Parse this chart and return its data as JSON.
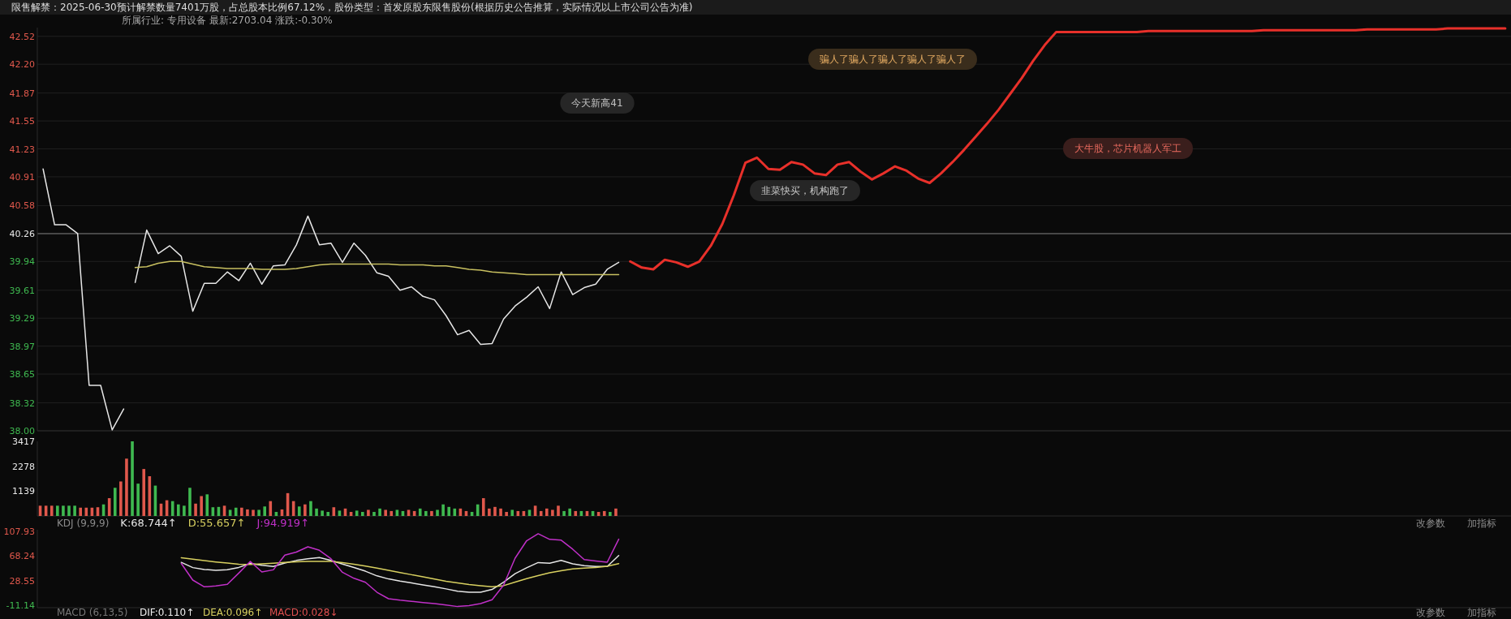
{
  "chart_data": [
    {
      "type": "line",
      "title": "限售解禁：2025-06-30预计解禁数量7401万股，占总股本比例67.12%，股份类型：首发原股东限售股份(根据历史公告推算，实际情况以上市公司公告为准)",
      "subtitle": "所属行业: 专用设备   最新:2703.04   涨跌:-0.30%",
      "categories": [
        null,
        null,
        null,
        null,
        null,
        null,
        null,
        null,
        null,
        null,
        null,
        null,
        null,
        null,
        null,
        null,
        null,
        null,
        null,
        null,
        null,
        null,
        null,
        null,
        null,
        null,
        null,
        null,
        null,
        null,
        null,
        null,
        null,
        null,
        null,
        null,
        null,
        null,
        null,
        null,
        null,
        null,
        null,
        null,
        null,
        null,
        null,
        null,
        null,
        null,
        null,
        null,
        null,
        null,
        null,
        null,
        null,
        null,
        null,
        null,
        null,
        null,
        null,
        null,
        null,
        null,
        null,
        null,
        null,
        null,
        null,
        null,
        null,
        null,
        null,
        null,
        null,
        null,
        null,
        null,
        null,
        null,
        null,
        null,
        null,
        null,
        null,
        null,
        null,
        null,
        null,
        null,
        null,
        null,
        null,
        null,
        null,
        null,
        null,
        null,
        null,
        null,
        null,
        null,
        null,
        null,
        null,
        null,
        null,
        null,
        null,
        null,
        null,
        null,
        null,
        null,
        null,
        null,
        null,
        null,
        null,
        null,
        null,
        null,
        null,
        null,
        null,
        null
      ],
      "ylim": [
        38,
        42.62
      ],
      "yticks": [
        {
          "value": 38,
          "label": "38.00"
        },
        38.32,
        38.65,
        38.97,
        39.29,
        39.61,
        39.94,
        40.26,
        40.58,
        40.91,
        41.23,
        41.55,
        41.87,
        {
          "value": 42.2,
          "label": "42.20"
        },
        42.52
      ],
      "tick_labels": "y",
      "grid": "y",
      "ref_lines": [
        {
          "axis": "y",
          "value": 40.26,
          "color": "#5a5a5a"
        }
      ],
      "annotations": [
        "今天新高41",
        "骗人了骗人了骗人了骗人了骗人了",
        "韭菜快买，机构跑了",
        "大牛股，芯片机器人军工"
      ],
      "series": [
        {
          "color": "#e6e6e6",
          "values": [
            41.0,
            40.36,
            40.36,
            40.26,
            38.52,
            38.52,
            38.01,
            38.25,
            null,
            null,
            null,
            null,
            null,
            null,
            null,
            null,
            null,
            null,
            null,
            null,
            null,
            null,
            null,
            null,
            null,
            null,
            null,
            null,
            null,
            null,
            null,
            null,
            null,
            null,
            null,
            null,
            null,
            null,
            null,
            null,
            null,
            null,
            null,
            null,
            null,
            null,
            null,
            null,
            null,
            null,
            null,
            null,
            null,
            null,
            null,
            null,
            null,
            null,
            null,
            null,
            null,
            null,
            null,
            null,
            null,
            null,
            null,
            null,
            null,
            null,
            null,
            null,
            null,
            null,
            null,
            null,
            null,
            null,
            null,
            null,
            null,
            null,
            null,
            null,
            null,
            null,
            null,
            null,
            null,
            null,
            null,
            null,
            null,
            null,
            null,
            null,
            null,
            null,
            null,
            null,
            null,
            null,
            null,
            null,
            null,
            null,
            null,
            null,
            null,
            null,
            null,
            null,
            null,
            null,
            null,
            null,
            null,
            null,
            null,
            null,
            null,
            null,
            null,
            null,
            null,
            null,
            null,
            null
          ]
        },
        {
          "color": "#e6e6e6",
          "values": [
            null,
            null,
            null,
            null,
            null,
            null,
            null,
            null,
            39.7,
            40.3,
            40.03,
            40.12,
            40.0,
            39.37,
            39.69,
            39.69,
            39.82,
            39.72,
            39.92,
            39.68,
            39.89,
            39.9,
            40.13,
            40.46,
            40.13,
            40.15,
            39.93,
            40.15,
            40.01,
            39.81,
            39.77,
            39.61,
            39.65,
            39.54,
            39.5,
            39.32,
            39.1,
            39.15,
            38.99,
            39.0,
            39.28,
            39.43,
            39.53,
            39.65,
            39.4,
            39.82,
            39.56,
            39.64,
            39.68,
            39.85,
            39.93,
            null,
            null,
            null,
            null,
            null,
            null,
            null,
            null,
            null,
            null,
            null,
            null,
            null,
            null,
            null,
            null,
            null,
            null,
            null,
            null,
            null,
            null,
            null,
            null,
            null,
            null,
            null,
            null,
            null,
            null,
            null,
            null,
            null,
            null,
            null,
            null,
            null,
            null,
            null,
            null,
            null,
            null,
            null,
            null,
            null,
            null,
            null,
            null,
            null,
            null,
            null,
            null,
            null,
            null,
            null,
            null,
            null,
            null,
            null,
            null,
            null,
            null,
            null,
            null,
            null,
            null,
            null,
            null,
            null,
            null,
            null,
            null,
            null,
            null,
            null,
            null,
            null
          ]
        },
        {
          "color": "#c8c060",
          "values": [
            null,
            null,
            null,
            null,
            null,
            null,
            null,
            null,
            39.87,
            39.88,
            39.92,
            39.94,
            39.94,
            39.91,
            39.88,
            39.87,
            39.86,
            39.86,
            39.86,
            39.85,
            39.85,
            39.85,
            39.86,
            39.88,
            39.9,
            39.91,
            39.91,
            39.91,
            39.91,
            39.91,
            39.91,
            39.9,
            39.9,
            39.9,
            39.89,
            39.89,
            39.87,
            39.85,
            39.84,
            39.82,
            39.81,
            39.8,
            39.79,
            39.79,
            39.79,
            39.79,
            39.79,
            39.79,
            39.79,
            39.79,
            39.79,
            null,
            null,
            null,
            null,
            null,
            null,
            null,
            null,
            null,
            null,
            null,
            null,
            null,
            null,
            null,
            null,
            null,
            null,
            null,
            null,
            null,
            null,
            null,
            null,
            null,
            null,
            null,
            null,
            null,
            null,
            null,
            null,
            null,
            null,
            null,
            null,
            null,
            null,
            null,
            null,
            null,
            null,
            null,
            null,
            null,
            null,
            null,
            null,
            null,
            null,
            null,
            null,
            null,
            null,
            null,
            null,
            null,
            null,
            null,
            null,
            null,
            null,
            null,
            null,
            null,
            null,
            null,
            null,
            null,
            null,
            null,
            null,
            null,
            null,
            null,
            null,
            null
          ]
        },
        {
          "color": "#e8302a",
          "values": [
            null,
            null,
            null,
            null,
            null,
            null,
            null,
            null,
            null,
            null,
            null,
            null,
            null,
            null,
            null,
            null,
            null,
            null,
            null,
            null,
            null,
            null,
            null,
            null,
            null,
            null,
            null,
            null,
            null,
            null,
            null,
            null,
            null,
            null,
            null,
            null,
            null,
            null,
            null,
            null,
            null,
            null,
            null,
            null,
            null,
            null,
            null,
            null,
            null,
            null,
            null,
            39.94,
            39.87,
            39.85,
            39.96,
            39.93,
            39.88,
            39.94,
            40.12,
            40.37,
            40.7,
            41.07,
            41.13,
            41.0,
            40.99,
            41.08,
            41.05,
            40.95,
            40.93,
            41.05,
            41.08,
            40.97,
            40.88,
            40.95,
            41.03,
            40.98,
            40.89,
            40.84,
            40.95,
            41.08,
            41.22,
            41.37,
            41.52,
            41.68,
            41.86,
            42.04,
            42.24,
            42.42,
            42.57,
            42.57,
            42.57,
            42.57,
            42.57,
            42.57,
            42.57,
            42.57,
            42.58,
            42.58,
            42.58,
            42.58,
            42.58,
            42.58,
            42.58,
            42.58,
            42.58,
            42.58,
            42.59,
            42.59,
            42.59,
            42.59,
            42.59,
            42.59,
            42.59,
            42.59,
            42.59,
            42.6,
            42.6,
            42.6,
            42.6,
            42.6,
            42.6,
            42.6,
            42.61,
            42.61,
            42.61,
            42.61,
            42.61,
            42.61
          ]
        }
      ]
    },
    {
      "type": "bar",
      "categories": [
        null,
        null,
        null,
        null,
        null,
        null,
        null,
        null,
        null,
        null,
        null,
        null,
        null,
        null,
        null,
        null,
        null,
        null,
        null,
        null,
        null,
        null,
        null,
        null,
        null,
        null,
        null,
        null,
        null,
        null,
        null,
        null,
        null,
        null,
        null,
        null,
        null,
        null,
        null,
        null,
        null,
        null,
        null,
        null,
        null,
        null,
        null,
        null,
        null,
        null,
        null,
        null,
        null,
        null,
        null,
        null,
        null,
        null,
        null,
        null,
        null,
        null,
        null,
        null,
        null,
        null,
        null,
        null,
        null,
        null,
        null,
        null,
        null,
        null,
        null,
        null,
        null,
        null,
        null,
        null,
        null,
        null,
        null,
        null,
        null,
        null,
        null,
        null,
        null,
        null,
        null,
        null,
        null,
        null,
        null,
        null,
        null,
        null,
        null,
        null,
        null,
        null,
        null,
        null,
        null,
        null,
        null,
        null,
        null,
        null,
        null,
        null,
        null,
        null,
        null,
        null,
        null,
        null,
        null,
        null,
        null,
        null,
        null,
        null,
        null,
        null,
        null,
        null,
        null,
        null,
        null,
        null,
        null,
        null,
        null,
        null,
        null,
        null,
        null,
        null,
        null,
        null,
        null,
        null,
        null,
        null,
        null,
        null,
        null,
        null,
        null,
        null,
        null,
        null,
        null,
        null,
        null,
        null,
        null,
        null,
        null,
        null,
        null,
        null,
        null,
        null,
        null,
        null,
        null,
        null,
        null,
        null,
        null,
        null,
        null,
        null,
        null,
        null,
        null,
        null,
        null,
        null,
        null,
        null,
        null,
        null,
        null,
        null,
        null,
        null,
        null,
        null,
        null,
        null,
        null,
        null,
        null,
        null,
        null,
        null,
        null,
        null,
        null,
        null,
        null,
        null,
        null,
        null,
        null,
        null,
        null,
        null,
        null,
        null,
        null,
        null,
        null,
        null,
        null,
        null,
        null,
        null,
        null,
        null,
        null,
        null,
        null,
        null,
        null,
        null,
        null,
        null,
        null,
        null,
        null,
        null,
        null,
        null,
        null,
        null,
        null,
        null,
        null,
        null,
        null,
        null,
        null,
        null,
        null,
        null,
        null,
        null,
        null,
        null,
        null,
        null
      ],
      "ylim": [
        0,
        3417
      ],
      "yticks": [
        1139,
        2278,
        3417
      ],
      "tick_labels": "y",
      "values": [
        470,
        470,
        470,
        470,
        470,
        470,
        470,
        380,
        380,
        380,
        400,
        530,
        815,
        1290,
        1580,
        2625,
        3417,
        1480,
        2150,
        1820,
        1390,
        565,
        720,
        680,
        530,
        470,
        1290,
        565,
        910,
        990,
        400,
        415,
        470,
        280,
        380,
        380,
        300,
        280,
        280,
        435,
        680,
        185,
        300,
        1045,
        680,
        435,
        530,
        680,
        340,
        245,
        185,
        400,
        245,
        340,
        185,
        245,
        185,
        280,
        185,
        340,
        280,
        225,
        280,
        225,
        280,
        225,
        340,
        225,
        225,
        280,
        530,
        415,
        340,
        340,
        225,
        185,
        530,
        815,
        340,
        415,
        340,
        185,
        280,
        225,
        225,
        280,
        470,
        225,
        340,
        280,
        470,
        225,
        340,
        225,
        225,
        225,
        225,
        185,
        225,
        185,
        340,
        null,
        null,
        null,
        null,
        null,
        null,
        null,
        null,
        null,
        null,
        null,
        null,
        null,
        null,
        null,
        null,
        null,
        null,
        null,
        null,
        null,
        null,
        null,
        null,
        null,
        null,
        null,
        null,
        null,
        null,
        null,
        null,
        null,
        null,
        null,
        null,
        null,
        null,
        null,
        null,
        null,
        null,
        null,
        null,
        null,
        null,
        null,
        null,
        null,
        null,
        null,
        null,
        null,
        null,
        null,
        null,
        null,
        null,
        null,
        null,
        null,
        null,
        null,
        null,
        null,
        null,
        null,
        null,
        null,
        null,
        null,
        null,
        null,
        null,
        null,
        null,
        null,
        null,
        null,
        null,
        null,
        null,
        null,
        null,
        null,
        null,
        null,
        null,
        null,
        null,
        null,
        null,
        null,
        null,
        null,
        null,
        null,
        null,
        null,
        null,
        null,
        null,
        null,
        null,
        null,
        null,
        null,
        null,
        null,
        null,
        null,
        null,
        null,
        null,
        null,
        null,
        null,
        null,
        null,
        null,
        null,
        null,
        null,
        null,
        null,
        null,
        null,
        null,
        null,
        null,
        null,
        null,
        null,
        null,
        null,
        null,
        null,
        null,
        null,
        null,
        null,
        null,
        null,
        null,
        null,
        null,
        null,
        null,
        null,
        null,
        null,
        null,
        null,
        null,
        null
      ],
      "colors": [
        "#e0584c",
        "#e0584c",
        "#e0584c",
        "#3fb950",
        "#3fb950",
        "#3fb950",
        "#3fb950",
        "#e0584c",
        "#e0584c",
        "#e0584c",
        "#e0584c",
        "#3fb950",
        "#e0584c",
        "#3fb950",
        "#e0584c",
        "#e0584c",
        "#3fb950",
        "#3fb950",
        "#e0584c",
        "#e0584c",
        "#3fb950",
        "#e0584c",
        "#e0584c",
        "#3fb950",
        "#3fb950",
        "#3fb950",
        "#3fb950",
        "#e0584c",
        "#e0584c",
        "#3fb950",
        "#3fb950",
        "#3fb950",
        "#e0584c",
        "#3fb950",
        "#3fb950",
        "#e0584c",
        "#e0584c",
        "#e0584c",
        "#3fb950",
        "#3fb950",
        "#e0584c",
        "#3fb950",
        "#e0584c",
        "#e0584c",
        "#e0584c",
        "#3fb950",
        "#e0584c",
        "#3fb950",
        "#3fb950",
        "#3fb950",
        "#3fb950",
        "#e0584c",
        "#3fb950",
        "#e0584c",
        "#e0584c",
        "#3fb950",
        "#3fb950",
        "#e0584c",
        "#3fb950",
        "#3fb950",
        "#e0584c",
        "#e0584c",
        "#3fb950",
        "#3fb950",
        "#e0584c",
        "#e0584c",
        "#3fb950",
        "#3fb950",
        "#e0584c",
        "#3fb950",
        "#3fb950",
        "#3fb950",
        "#3fb950",
        "#e0584c",
        "#e0584c",
        "#3fb950",
        "#3fb950",
        "#e0584c",
        "#e0584c",
        "#e0584c",
        "#e0584c",
        "#e0584c",
        "#3fb950",
        "#e0584c",
        "#e0584c",
        "#3fb950",
        "#e0584c",
        "#e0584c",
        "#e0584c",
        "#e0584c",
        "#e0584c",
        "#3fb950",
        "#3fb950",
        "#e0584c",
        "#3fb950",
        "#e0584c",
        "#3fb950",
        "#e0584c",
        "#e0584c",
        "#3fb950",
        "#e0584c",
        null,
        null,
        null,
        null,
        null,
        null,
        null,
        null,
        null,
        null,
        null,
        null,
        null,
        null,
        null,
        null,
        null,
        null,
        null,
        null,
        null,
        null,
        null,
        null,
        null,
        null,
        null,
        null,
        null,
        null,
        null,
        null,
        null,
        null,
        null,
        null,
        null,
        null,
        null,
        null,
        null,
        null,
        null,
        null,
        null,
        null,
        null,
        null,
        null,
        null,
        null,
        null,
        null,
        null,
        null,
        null,
        null,
        null,
        null,
        null,
        null,
        null,
        null,
        null,
        null,
        null,
        null,
        null,
        null,
        null,
        null,
        null,
        null,
        null,
        null,
        null,
        null,
        null,
        null,
        null,
        null,
        null,
        null,
        null,
        null,
        null,
        null,
        null,
        null,
        null,
        null,
        null,
        null,
        null,
        null,
        null,
        null,
        null,
        null,
        null,
        null,
        null,
        null,
        null,
        null,
        null,
        null,
        null,
        null,
        null,
        null,
        null,
        null,
        null,
        null,
        null,
        null,
        null,
        null,
        null,
        null,
        null,
        null,
        null,
        null,
        null,
        null,
        null,
        null,
        null,
        null,
        null,
        null,
        null,
        null,
        null,
        null,
        null,
        null,
        null,
        null,
        null,
        null,
        null,
        null,
        null,
        null,
        null,
        null,
        null,
        null,
        null,
        null,
        null,
        null
      ]
    },
    {
      "type": "line",
      "title": "KDJ (9,9,9)",
      "categories": [
        null,
        null,
        null,
        null,
        null,
        null,
        null,
        null,
        null,
        null,
        null,
        null,
        null,
        null,
        null,
        null,
        null,
        null,
        null,
        null,
        null,
        null,
        null,
        null,
        null,
        null,
        null,
        null,
        null,
        null,
        null,
        null,
        null,
        null,
        null,
        null,
        null,
        null,
        null,
        null,
        null,
        null,
        null,
        null,
        null,
        null,
        null,
        null,
        null,
        null,
        null,
        null,
        null,
        null,
        null,
        null,
        null,
        null,
        null,
        null,
        null,
        null,
        null,
        null,
        null,
        null,
        null,
        null,
        null,
        null,
        null,
        null,
        null,
        null,
        null,
        null,
        null,
        null,
        null,
        null,
        null,
        null,
        null,
        null,
        null,
        null,
        null,
        null,
        null,
        null,
        null,
        null,
        null,
        null,
        null,
        null,
        null,
        null,
        null,
        null,
        null,
        null,
        null,
        null,
        null,
        null,
        null,
        null,
        null,
        null,
        null,
        null,
        null,
        null,
        null,
        null,
        null,
        null,
        null,
        null,
        null,
        null,
        null,
        null,
        null,
        null,
        null,
        null
      ],
      "ylim": [
        -15,
        110
      ],
      "yticks": [
        -11.14,
        28.55,
        68.24,
        107.93
      ],
      "tick_labels": "y",
      "annotations": [
        "改参数",
        "加指标",
        "MACD (6,13,5)",
        "DIF:0.110↑",
        "DEA:0.096↑",
        "MACD:0.028↓",
        "改参数",
        "加指标"
      ],
      "series": [
        {
          "name": "K:68.744↑",
          "color": "#e6e6e6",
          "values": [
            null,
            null,
            null,
            null,
            null,
            null,
            null,
            null,
            null,
            null,
            null,
            null,
            57.7,
            49.3,
            46.3,
            44.9,
            45.9,
            49.6,
            55.9,
            52.9,
            51.1,
            56.7,
            60.7,
            63.4,
            65.5,
            60.8,
            55.1,
            49.5,
            43.5,
            36.0,
            31.1,
            27.5,
            24.6,
            21.6,
            18.6,
            15.1,
            11.4,
            9.7,
            9.7,
            14.2,
            25.9,
            39.6,
            48.9,
            57.4,
            56.4,
            60.8,
            55.4,
            52.5,
            51.1,
            51.1,
            68.7,
            null,
            null,
            null,
            null,
            null,
            null,
            null,
            null,
            null,
            null,
            null,
            null,
            null,
            null,
            null,
            null,
            null,
            null,
            null,
            null,
            null,
            null,
            null,
            null,
            null,
            null,
            null,
            null,
            null,
            null,
            null,
            null,
            null,
            null,
            null,
            null,
            null,
            null,
            null,
            null,
            null,
            null,
            null,
            null,
            null,
            null,
            null,
            null,
            null,
            null,
            null,
            null,
            null,
            null,
            null,
            null,
            null,
            null,
            null,
            null,
            null,
            null,
            null,
            null,
            null,
            null,
            null,
            null,
            null,
            null,
            null,
            null,
            null,
            null,
            null,
            null,
            null
          ]
        },
        {
          "name": "D:55.657↑",
          "color": "#d8d060",
          "values": [
            null,
            null,
            null,
            null,
            null,
            null,
            null,
            null,
            null,
            null,
            null,
            null,
            65.0,
            62.8,
            60.5,
            58.4,
            56.5,
            54.7,
            54.2,
            55.2,
            56.4,
            57.5,
            58.6,
            59.1,
            59.1,
            59.1,
            57.3,
            54.6,
            51.8,
            48.4,
            44.9,
            41.4,
            37.9,
            34.4,
            31.0,
            27.4,
            24.8,
            22.0,
            20.3,
            18.5,
            20.3,
            26.0,
            31.6,
            36.3,
            41.0,
            44.1,
            47.2,
            48.5,
            49.4,
            51.5,
            55.7,
            null,
            null,
            null,
            null,
            null,
            null,
            null,
            null,
            null,
            null,
            null,
            null,
            null,
            null,
            null,
            null,
            null,
            null,
            null,
            null,
            null,
            null,
            null,
            null,
            null,
            null,
            null,
            null,
            null,
            null,
            null,
            null,
            null,
            null,
            null,
            null,
            null,
            null,
            null,
            null,
            null,
            null,
            null,
            null,
            null,
            null,
            null,
            null,
            null,
            null,
            null,
            null,
            null,
            null,
            null,
            null,
            null,
            null,
            null,
            null,
            null,
            null,
            null,
            null,
            null,
            null,
            null,
            null,
            null,
            null,
            null,
            null,
            null,
            null,
            null,
            null,
            null
          ]
        },
        {
          "name": "J:94.919↑",
          "color": "#c030c8",
          "values": [
            null,
            null,
            null,
            null,
            null,
            null,
            null,
            null,
            null,
            null,
            null,
            null,
            55.9,
            29.3,
            18.4,
            19.8,
            22.5,
            40.5,
            59.2,
            42.3,
            45.7,
            69.4,
            74.2,
            82.6,
            77.0,
            63.5,
            41.7,
            32.1,
            25.7,
            9.7,
            -0.7,
            -3.0,
            -4.8,
            -6.7,
            -8.6,
            -10.9,
            -13.2,
            -11.7,
            -8.6,
            -2.4,
            21.1,
            64.4,
            92.4,
            103.6,
            94.6,
            93.3,
            78.8,
            62.1,
            59.8,
            57.9,
            94.9,
            null,
            null,
            null,
            null,
            null,
            null,
            null,
            null,
            null,
            null,
            null,
            null,
            null,
            null,
            null,
            null,
            null,
            null,
            null,
            null,
            null,
            null,
            null,
            null,
            null,
            null,
            null,
            null,
            null,
            null,
            null,
            null,
            null,
            null,
            null,
            null,
            null,
            null,
            null,
            null,
            null,
            null,
            null,
            null,
            null,
            null,
            null,
            null,
            null,
            null,
            null,
            null,
            null,
            null,
            null,
            null,
            null,
            null,
            null,
            null,
            null,
            null,
            null,
            null,
            null,
            null,
            null,
            null,
            null,
            null,
            null,
            null,
            null,
            null,
            null,
            null,
            null
          ]
        }
      ]
    }
  ]
}
